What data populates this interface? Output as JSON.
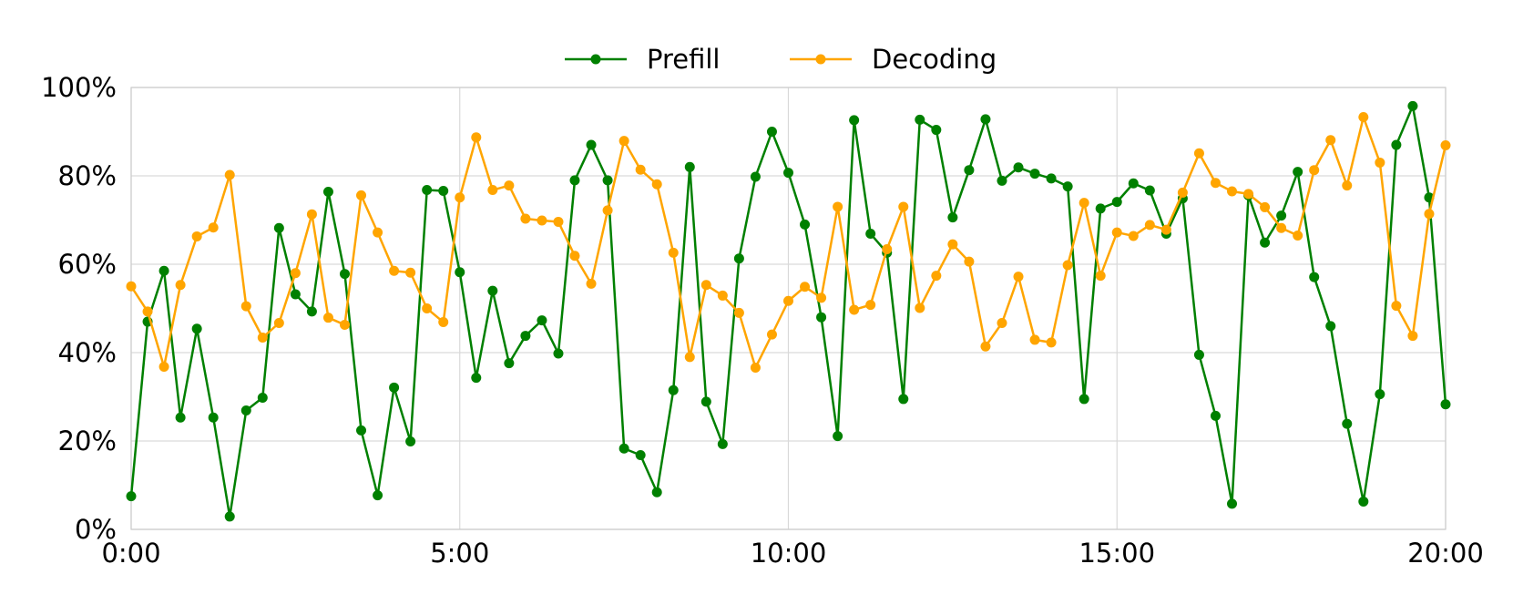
{
  "chart_data": {
    "type": "line",
    "x": [
      0,
      0.25,
      0.5,
      0.75,
      1,
      1.25,
      1.5,
      1.75,
      2,
      2.25,
      2.5,
      2.75,
      3,
      3.25,
      3.5,
      3.75,
      4,
      4.25,
      4.5,
      4.75,
      5,
      5.25,
      5.5,
      5.75,
      6,
      6.25,
      6.5,
      6.75,
      7,
      7.25,
      7.5,
      7.75,
      8,
      8.25,
      8.5,
      8.75,
      9,
      9.25,
      9.5,
      9.75,
      10,
      10.25,
      10.5,
      10.75,
      11,
      11.25,
      11.5,
      11.75,
      12,
      12.25,
      12.5,
      12.75,
      13,
      13.25,
      13.5,
      13.75,
      14,
      14.25,
      14.5,
      14.75,
      15,
      15.25,
      15.5,
      15.75,
      16,
      16.25,
      16.5,
      16.75,
      17,
      17.25,
      17.5,
      17.75,
      18,
      18.25,
      18.5,
      18.75,
      19,
      19.25,
      19.5,
      19.75,
      20
    ],
    "series": [
      {
        "name": "Prefill",
        "color": "#008000",
        "values": [
          7.5,
          47,
          58.5,
          25.3,
          45.4,
          25.3,
          2.9,
          26.9,
          29.8,
          68.2,
          53.2,
          49.3,
          76.4,
          57.8,
          22.4,
          7.7,
          32.1,
          19.9,
          76.8,
          76.6,
          58.2,
          34.3,
          54,
          37.6,
          43.8,
          47.3,
          39.8,
          79,
          87,
          79,
          18.3,
          16.8,
          8.4,
          31.5,
          82,
          28.9,
          19.3,
          61.3,
          79.8,
          90,
          80.7,
          69,
          48,
          21.1,
          92.6,
          66.9,
          62.6,
          29.5,
          92.7,
          90.4,
          70.6,
          81.3,
          92.8,
          78.9,
          81.9,
          80.5,
          79.4,
          77.6,
          29.5,
          72.6,
          74.1,
          78.3,
          76.7,
          66.9,
          74.9,
          39.5,
          25.7,
          5.8,
          75.6,
          64.9,
          71,
          80.9,
          57.1,
          46,
          23.9,
          6.3,
          30.6,
          87,
          95.8,
          75.1,
          28.3
        ]
      },
      {
        "name": "Decoding",
        "color": "#FFA500",
        "values": [
          55,
          49.3,
          36.8,
          55.3,
          66.3,
          68.3,
          80.2,
          50.5,
          43.4,
          46.7,
          58,
          71.3,
          47.9,
          46.3,
          75.6,
          67.2,
          58.5,
          58.1,
          50,
          46.9,
          75.1,
          88.7,
          76.8,
          77.8,
          70.3,
          69.9,
          69.6,
          61.9,
          55.6,
          72.2,
          87.9,
          81.4,
          78.1,
          62.6,
          39,
          55.3,
          52.9,
          49,
          36.6,
          44.1,
          51.7,
          54.9,
          52.4,
          73,
          49.7,
          50.8,
          63.4,
          73,
          50.1,
          57.4,
          64.5,
          60.6,
          41.4,
          46.7,
          57.2,
          42.9,
          42.3,
          59.8,
          73.9,
          57.4,
          67.2,
          66.4,
          68.9,
          67.8,
          76.2,
          85.1,
          78.4,
          76.5,
          75.9,
          72.9,
          68.2,
          66.5,
          81.3,
          88.1,
          77.8,
          93.3,
          83,
          50.6,
          43.8,
          71.4,
          86.9
        ]
      }
    ],
    "xlim": [
      0,
      20
    ],
    "ylim": [
      0,
      100
    ],
    "x_ticks": [
      {
        "value": 0,
        "label": "0:00"
      },
      {
        "value": 5,
        "label": "5:00"
      },
      {
        "value": 10,
        "label": "10:00"
      },
      {
        "value": 15,
        "label": "15:00"
      },
      {
        "value": 20,
        "label": "20:00"
      }
    ],
    "y_ticks": [
      {
        "value": 0,
        "label": "0%"
      },
      {
        "value": 20,
        "label": "20%"
      },
      {
        "value": 40,
        "label": "40%"
      },
      {
        "value": 60,
        "label": "60%"
      },
      {
        "value": 80,
        "label": "80%"
      },
      {
        "value": 100,
        "label": "100%"
      }
    ],
    "grid": true,
    "legend": {
      "position": "top-center",
      "orientation": "horizontal"
    },
    "title": "",
    "xlabel": "",
    "ylabel": ""
  }
}
